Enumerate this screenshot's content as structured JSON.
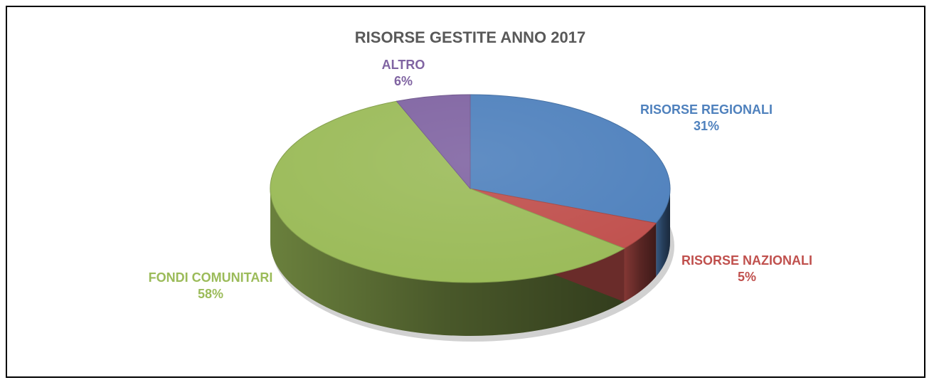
{
  "chart_data": {
    "type": "pie",
    "title": "RISORSE GESTITE ANNO 2017",
    "slices": [
      {
        "label": "RISORSE REGIONALI",
        "value": 31,
        "display": "31%",
        "color": "#4f81bd"
      },
      {
        "label": "RISORSE NAZIONALI",
        "value": 5,
        "display": "5%",
        "color": "#c0504d"
      },
      {
        "label": "FONDI COMUNITARI",
        "value": 58,
        "display": "58%",
        "color": "#9bbb59"
      },
      {
        "label": "ALTRO",
        "value": 6,
        "display": "6%",
        "color": "#8064a2"
      }
    ],
    "legend": "none",
    "three_d": true
  }
}
